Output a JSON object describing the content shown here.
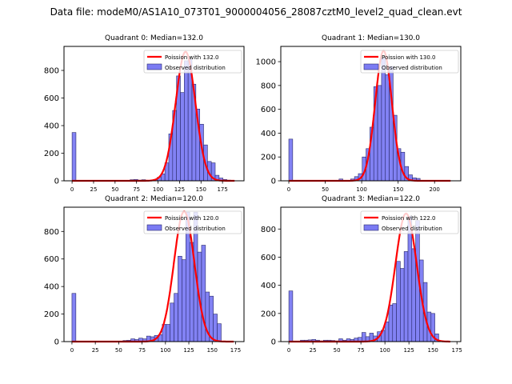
{
  "suptitle": "Data file: modeM0/AS1A10_073T01_9000004056_28087cztM0_level2_quad_clean.evt",
  "colors": {
    "bar_fill": "#7b7bf3",
    "bar_edge": "#2a2a6a",
    "poisson_line": "#ff0000"
  },
  "chart_data": [
    {
      "type": "bar",
      "title": "Quadrant 0: Median=132.0",
      "legend": [
        "Poission with 132.0",
        "Observed distribution"
      ],
      "legend_position": "top-right",
      "xlim": [
        -9.4,
        200
      ],
      "ylim": [
        0,
        974
      ],
      "xticks": [
        0,
        25,
        50,
        75,
        100,
        125,
        150,
        175
      ],
      "yticks": [
        0,
        200,
        400,
        600,
        800
      ],
      "bin_width": 4.5,
      "bins": [
        0,
        67.5,
        72,
        76.5,
        81,
        94.5,
        99,
        103.5,
        108,
        112.5,
        117,
        121.5,
        126,
        130.5,
        135,
        139.5,
        144,
        148.5,
        153,
        157.5,
        162,
        166.5,
        171,
        175.5,
        180
      ],
      "counts": [
        350,
        8,
        10,
        5,
        8,
        10,
        25,
        50,
        130,
        340,
        510,
        760,
        640,
        870,
        880,
        700,
        520,
        410,
        260,
        140,
        130,
        40,
        20,
        10,
        5
      ],
      "poisson_mean": 132.0,
      "poisson_peak": 935,
      "poisson_xrange": [
        0,
        189
      ]
    },
    {
      "type": "bar",
      "title": "Quadrant 1: Median=130.0",
      "legend": [
        "Poission with 130.0",
        "Observed distribution"
      ],
      "legend_position": "top-right",
      "xlim": [
        -11,
        236
      ],
      "ylim": [
        0,
        1128
      ],
      "xticks": [
        0,
        50,
        100,
        150,
        200
      ],
      "yticks": [
        0,
        200,
        400,
        600,
        800,
        1000
      ],
      "bin_width": 5.3,
      "bins": [
        0,
        68.9,
        84.8,
        90.1,
        95.4,
        100.7,
        106,
        111.3,
        116.6,
        121.9,
        127.2,
        132.5,
        137.8,
        143.1,
        148.4,
        153.7,
        159,
        164.3,
        169.6,
        174.9
      ],
      "counts": [
        350,
        15,
        15,
        35,
        60,
        200,
        270,
        450,
        790,
        800,
        1030,
        890,
        960,
        550,
        270,
        240,
        120,
        50,
        25,
        20
      ],
      "poisson_mean": 130.0,
      "poisson_peak": 1090,
      "poisson_xrange": [
        0,
        222
      ]
    },
    {
      "type": "bar",
      "title": "Quadrant 2: Median=120.0",
      "legend": [
        "Poission with 120.0",
        "Observed distribution"
      ],
      "legend_position": "top-right",
      "xlim": [
        -8.5,
        184
      ],
      "ylim": [
        0,
        976
      ],
      "xticks": [
        0,
        25,
        50,
        75,
        100,
        125,
        150,
        175
      ],
      "yticks": [
        0,
        200,
        400,
        600,
        800
      ],
      "bin_width": 4.2,
      "bins": [
        0,
        54.6,
        58.8,
        63,
        67.2,
        71.4,
        75.6,
        79.8,
        84,
        88.2,
        92.4,
        96.6,
        100.8,
        105,
        109.2,
        113.4,
        117.6,
        121.8,
        126,
        130.2,
        134.4,
        138.6,
        142.8,
        147,
        151.2,
        155.4
      ],
      "counts": [
        350,
        8,
        10,
        20,
        15,
        25,
        20,
        40,
        35,
        45,
        50,
        125,
        125,
        280,
        350,
        620,
        595,
        940,
        720,
        940,
        650,
        700,
        360,
        330,
        200,
        130
      ],
      "poisson_mean": 120.0,
      "poisson_peak": 945,
      "poisson_xrange": [
        0,
        173
      ]
    },
    {
      "type": "bar",
      "title": "Quadrant 3: Median=122.0",
      "legend": [
        "Poission with 122.0",
        "Observed distribution"
      ],
      "legend_position": "top-right",
      "xlim": [
        -8.4,
        179
      ],
      "ylim": [
        0,
        955
      ],
      "xticks": [
        0,
        25,
        50,
        75,
        100,
        125,
        150,
        175
      ],
      "yticks": [
        0,
        200,
        400,
        600,
        800
      ],
      "bin_width": 4.0,
      "bins": [
        0,
        12,
        16,
        20,
        24,
        28,
        32,
        36,
        40,
        44,
        48,
        52,
        56,
        60,
        64,
        68,
        72,
        76,
        80,
        84,
        88,
        92,
        96,
        100,
        104,
        108,
        112,
        116,
        120,
        124,
        128,
        132,
        136,
        140,
        144,
        148,
        152
      ],
      "counts": [
        360,
        10,
        10,
        12,
        15,
        10,
        5,
        10,
        10,
        8,
        5,
        20,
        10,
        20,
        15,
        25,
        30,
        65,
        35,
        60,
        40,
        70,
        80,
        140,
        260,
        270,
        570,
        520,
        640,
        890,
        660,
        860,
        580,
        420,
        210,
        200,
        55
      ],
      "poisson_mean": 122.0,
      "poisson_peak": 910,
      "poisson_xrange": [
        0,
        168
      ]
    }
  ]
}
